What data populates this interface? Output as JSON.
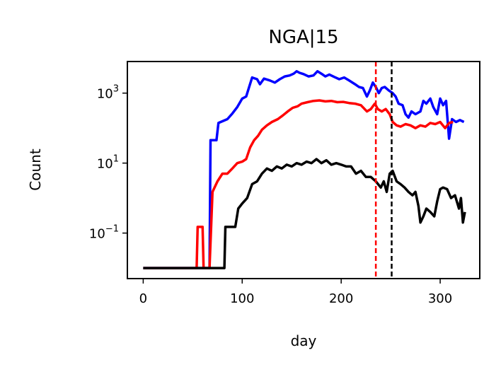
{
  "chart_data": {
    "type": "line",
    "title": "NGA|15",
    "xlabel": "day",
    "ylabel": "Count",
    "yscale": "log",
    "xlim": [
      -16,
      340
    ],
    "ylim": [
      0.005,
      8000
    ],
    "grid": false,
    "legend": "none",
    "x_ticks": [
      {
        "value": 0,
        "label": "0"
      },
      {
        "value": 100,
        "label": "100"
      },
      {
        "value": 200,
        "label": "200"
      },
      {
        "value": 300,
        "label": "300"
      }
    ],
    "y_ticks": [
      {
        "value": 0.1,
        "base": "10",
        "exp": "−1"
      },
      {
        "value": 10,
        "base": "10",
        "exp": "1"
      },
      {
        "value": 1000,
        "base": "10",
        "exp": "3"
      }
    ],
    "vlines": [
      {
        "x": 235,
        "color": "#ff0000",
        "style": "dashed"
      },
      {
        "x": 251,
        "color": "#000000",
        "style": "dashed"
      }
    ],
    "series": [
      {
        "color": "#0000ff",
        "points": [
          [
            0,
            0.01
          ],
          [
            67,
            0.01
          ],
          [
            68,
            45
          ],
          [
            74,
            45
          ],
          [
            76,
            140
          ],
          [
            85,
            180
          ],
          [
            90,
            260
          ],
          [
            95,
            400
          ],
          [
            100,
            700
          ],
          [
            104,
            800
          ],
          [
            107,
            1500
          ],
          [
            110,
            2800
          ],
          [
            115,
            2500
          ],
          [
            118,
            1800
          ],
          [
            122,
            2600
          ],
          [
            128,
            2300
          ],
          [
            133,
            2000
          ],
          [
            138,
            2500
          ],
          [
            143,
            3000
          ],
          [
            148,
            3200
          ],
          [
            152,
            3600
          ],
          [
            155,
            4200
          ],
          [
            158,
            3800
          ],
          [
            162,
            3500
          ],
          [
            167,
            3000
          ],
          [
            172,
            3200
          ],
          [
            176,
            4200
          ],
          [
            180,
            3600
          ],
          [
            184,
            3000
          ],
          [
            188,
            3400
          ],
          [
            193,
            2900
          ],
          [
            198,
            2500
          ],
          [
            203,
            2800
          ],
          [
            208,
            2300
          ],
          [
            214,
            1800
          ],
          [
            218,
            1500
          ],
          [
            222,
            1400
          ],
          [
            226,
            800
          ],
          [
            229,
            1200
          ],
          [
            232,
            2000
          ],
          [
            235,
            1500
          ],
          [
            238,
            1000
          ],
          [
            241,
            1400
          ],
          [
            244,
            1500
          ],
          [
            248,
            1200
          ],
          [
            252,
            1000
          ],
          [
            255,
            800
          ],
          [
            258,
            500
          ],
          [
            262,
            450
          ],
          [
            265,
            250
          ],
          [
            268,
            200
          ],
          [
            271,
            300
          ],
          [
            275,
            250
          ],
          [
            280,
            300
          ],
          [
            283,
            600
          ],
          [
            286,
            500
          ],
          [
            290,
            700
          ],
          [
            293,
            400
          ],
          [
            297,
            250
          ],
          [
            300,
            700
          ],
          [
            303,
            450
          ],
          [
            306,
            600
          ],
          [
            309,
            50
          ],
          [
            312,
            180
          ],
          [
            316,
            150
          ],
          [
            320,
            170
          ],
          [
            324,
            150
          ]
        ]
      },
      {
        "color": "#ff0000",
        "points": [
          [
            0,
            0.01
          ],
          [
            54,
            0.01
          ],
          [
            55,
            0.15
          ],
          [
            60,
            0.15
          ],
          [
            61,
            0.01
          ],
          [
            67,
            0.01
          ],
          [
            70,
            1.5
          ],
          [
            75,
            3
          ],
          [
            80,
            5
          ],
          [
            85,
            5
          ],
          [
            90,
            7
          ],
          [
            95,
            10
          ],
          [
            100,
            11
          ],
          [
            104,
            13
          ],
          [
            108,
            28
          ],
          [
            112,
            45
          ],
          [
            116,
            60
          ],
          [
            120,
            90
          ],
          [
            125,
            120
          ],
          [
            130,
            150
          ],
          [
            136,
            180
          ],
          [
            141,
            230
          ],
          [
            146,
            300
          ],
          [
            151,
            380
          ],
          [
            156,
            420
          ],
          [
            160,
            500
          ],
          [
            166,
            550
          ],
          [
            172,
            600
          ],
          [
            178,
            620
          ],
          [
            184,
            580
          ],
          [
            190,
            600
          ],
          [
            196,
            550
          ],
          [
            202,
            560
          ],
          [
            208,
            520
          ],
          [
            214,
            500
          ],
          [
            220,
            450
          ],
          [
            226,
            300
          ],
          [
            230,
            350
          ],
          [
            234,
            500
          ],
          [
            237,
            350
          ],
          [
            241,
            300
          ],
          [
            245,
            350
          ],
          [
            249,
            250
          ],
          [
            252,
            150
          ],
          [
            256,
            120
          ],
          [
            260,
            110
          ],
          [
            265,
            130
          ],
          [
            270,
            120
          ],
          [
            275,
            100
          ],
          [
            280,
            120
          ],
          [
            285,
            110
          ],
          [
            290,
            140
          ],
          [
            295,
            130
          ],
          [
            300,
            150
          ],
          [
            305,
            100
          ],
          [
            309,
            140
          ],
          [
            313,
            150
          ]
        ]
      },
      {
        "color": "#000000",
        "points": [
          [
            0,
            0.01
          ],
          [
            82,
            0.01
          ],
          [
            83,
            0.15
          ],
          [
            93,
            0.15
          ],
          [
            96,
            0.5
          ],
          [
            100,
            0.7
          ],
          [
            105,
            1
          ],
          [
            110,
            2.5
          ],
          [
            115,
            3
          ],
          [
            120,
            5
          ],
          [
            125,
            7
          ],
          [
            130,
            6
          ],
          [
            135,
            8
          ],
          [
            140,
            7
          ],
          [
            145,
            9
          ],
          [
            150,
            8
          ],
          [
            155,
            10
          ],
          [
            160,
            9
          ],
          [
            165,
            11
          ],
          [
            170,
            10
          ],
          [
            175,
            13
          ],
          [
            180,
            10
          ],
          [
            185,
            12
          ],
          [
            190,
            9
          ],
          [
            195,
            10
          ],
          [
            200,
            9
          ],
          [
            205,
            8
          ],
          [
            210,
            8
          ],
          [
            215,
            5
          ],
          [
            220,
            6
          ],
          [
            225,
            4
          ],
          [
            230,
            4
          ],
          [
            235,
            3
          ],
          [
            240,
            2
          ],
          [
            243,
            3
          ],
          [
            246,
            1.5
          ],
          [
            249,
            5
          ],
          [
            252,
            6
          ],
          [
            256,
            3
          ],
          [
            260,
            2.5
          ],
          [
            264,
            2
          ],
          [
            268,
            1.5
          ],
          [
            272,
            1.2
          ],
          [
            275,
            1.5
          ],
          [
            278,
            0.6
          ],
          [
            280,
            0.2
          ],
          [
            283,
            0.3
          ],
          [
            286,
            0.5
          ],
          [
            290,
            0.4
          ],
          [
            294,
            0.3
          ],
          [
            297,
            0.8
          ],
          [
            300,
            1.8
          ],
          [
            303,
            2
          ],
          [
            307,
            1.8
          ],
          [
            311,
            1
          ],
          [
            315,
            1.2
          ],
          [
            319,
            0.5
          ],
          [
            321,
            1
          ],
          [
            323,
            0.2
          ],
          [
            325,
            0.4
          ]
        ]
      }
    ]
  }
}
